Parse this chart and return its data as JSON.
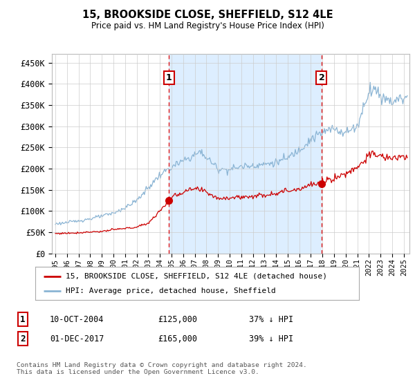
{
  "title": "15, BROOKSIDE CLOSE, SHEFFIELD, S12 4LE",
  "subtitle": "Price paid vs. HM Land Registry's House Price Index (HPI)",
  "ylabel_ticks": [
    "£0",
    "£50K",
    "£100K",
    "£150K",
    "£200K",
    "£250K",
    "£300K",
    "£350K",
    "£400K",
    "£450K"
  ],
  "ytick_values": [
    0,
    50000,
    100000,
    150000,
    200000,
    250000,
    300000,
    350000,
    400000,
    450000
  ],
  "ylim": [
    0,
    470000
  ],
  "hpi_color": "#8ab4d4",
  "price_color": "#cc0000",
  "background_color": "#ffffff",
  "plot_bg_color": "#ffffff",
  "span_color": "#ddeeff",
  "grid_color": "#cccccc",
  "sale1_date_num": 2004.78,
  "sale1_price": 125000,
  "sale2_date_num": 2017.92,
  "sale2_price": 165000,
  "legend_label_price": "15, BROOKSIDE CLOSE, SHEFFIELD, S12 4LE (detached house)",
  "legend_label_hpi": "HPI: Average price, detached house, Sheffield",
  "annotation1_date": "10-OCT-2004",
  "annotation1_price": "£125,000",
  "annotation1_stat": "37% ↓ HPI",
  "annotation2_date": "01-DEC-2017",
  "annotation2_price": "£165,000",
  "annotation2_stat": "39% ↓ HPI",
  "footer": "Contains HM Land Registry data © Crown copyright and database right 2024.\nThis data is licensed under the Open Government Licence v3.0.",
  "xstart": 1994.7,
  "xend": 2025.5
}
